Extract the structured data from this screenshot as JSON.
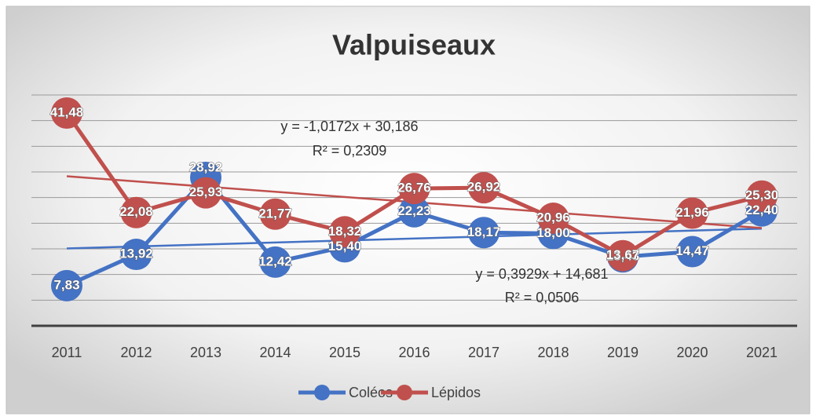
{
  "chart_data": {
    "type": "line",
    "title": "Valpuiseaux",
    "categories": [
      "2011",
      "2012",
      "2013",
      "2014",
      "2015",
      "2016",
      "2017",
      "2018",
      "2019",
      "2020",
      "2021"
    ],
    "series": [
      {
        "name": "Coléos",
        "color": "#4472c4",
        "values": [
          7.83,
          13.92,
          28.92,
          12.42,
          15.4,
          22.23,
          18.17,
          18.0,
          13.43,
          14.47,
          22.4
        ],
        "value_labels": [
          "7,83",
          "13,92",
          "28,92",
          "12,42",
          "15,40",
          "22,23",
          "18,17",
          "18,00",
          "13,43",
          "14,47",
          "22,40"
        ],
        "trendline": {
          "equation": "y = 0,3929x + 14,681",
          "r2": "R² = 0,0506"
        }
      },
      {
        "name": "Lépidos",
        "color": "#c0504d",
        "values": [
          41.48,
          22.08,
          25.93,
          21.77,
          18.32,
          26.76,
          26.92,
          20.96,
          13.67,
          21.96,
          25.3
        ],
        "value_labels": [
          "41,48",
          "22,08",
          "25,93",
          "21,77",
          "18,32",
          "26,76",
          "26,92",
          "20,96",
          "13,67",
          "21,96",
          "25,30"
        ],
        "trendline": {
          "equation": "y = -1,0172x + 30,186",
          "r2": "R² = 0,2309"
        }
      }
    ],
    "ylim": [
      0,
      45
    ],
    "yticks": [
      0,
      5,
      10,
      15,
      20,
      25,
      30,
      35,
      40,
      45
    ],
    "grid": true,
    "legend": "bottom"
  }
}
